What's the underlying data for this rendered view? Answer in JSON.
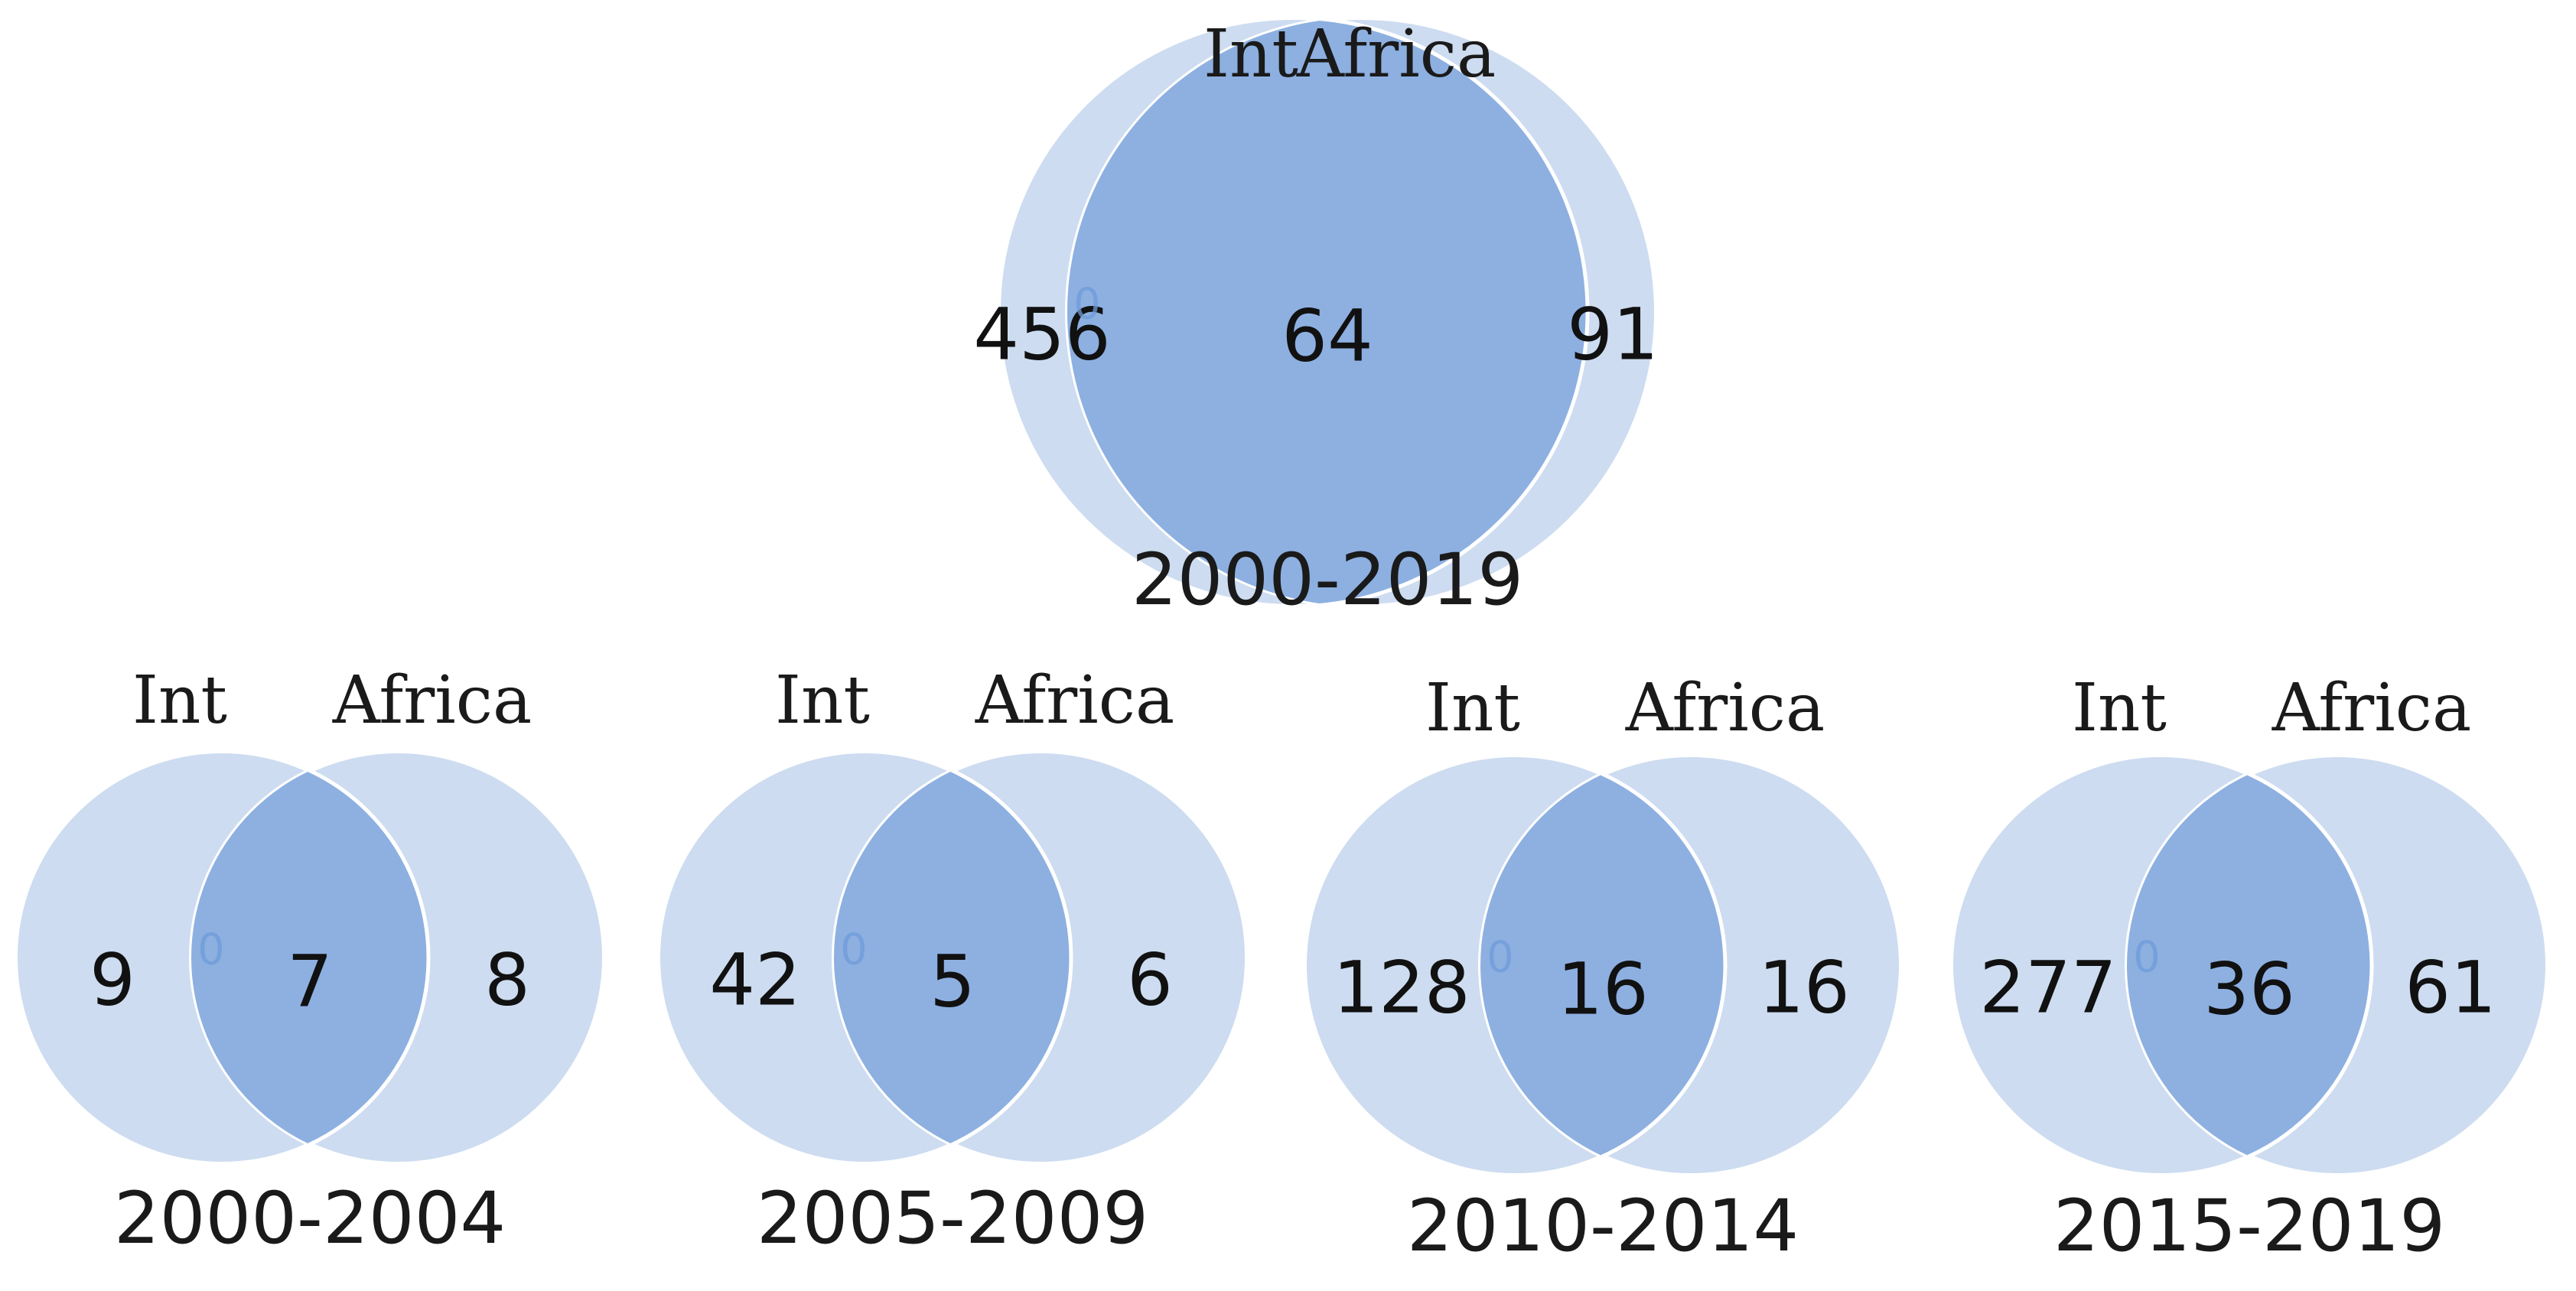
{
  "colors": {
    "circle_fill": "#cddcf0",
    "overlap_fill": "#8db0e1",
    "faint_zero": "#6f9bd8"
  },
  "venns": [
    {
      "set_a": "Int",
      "set_b": "Africa",
      "only_a": "456",
      "both": "64",
      "only_b": "91",
      "faint_zero": "0",
      "period": "2000-2019"
    },
    {
      "set_a": "Int",
      "set_b": "Africa",
      "only_a": "9",
      "both": "7",
      "only_b": "8",
      "faint_zero": "0",
      "period": "2000-2004"
    },
    {
      "set_a": "Int",
      "set_b": "Africa",
      "only_a": "42",
      "both": "5",
      "only_b": "6",
      "faint_zero": "0",
      "period": "2005-2009"
    },
    {
      "set_a": "Int",
      "set_b": "Africa",
      "only_a": "128",
      "both": "16",
      "only_b": "16",
      "faint_zero": "0",
      "period": "2010-2014"
    },
    {
      "set_a": "Int",
      "set_b": "Africa",
      "only_a": "277",
      "both": "36",
      "only_b": "61",
      "faint_zero": "0",
      "period": "2015-2019"
    }
  ]
}
